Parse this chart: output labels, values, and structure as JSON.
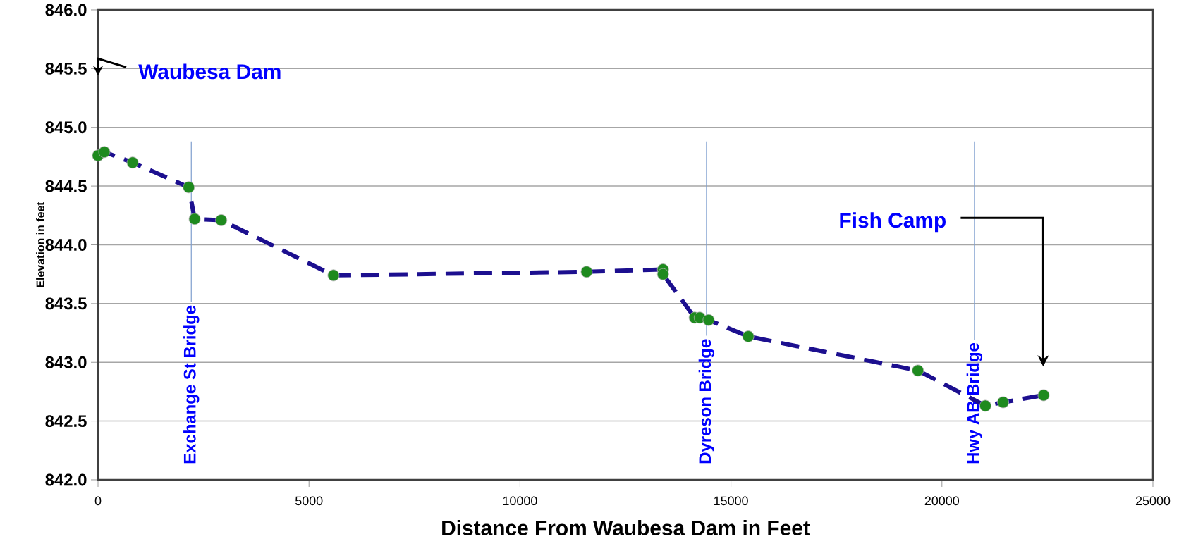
{
  "chart_data": {
    "type": "line",
    "xlabel": "Distance From Waubesa Dam in Feet",
    "ylabel": "Elevation in feet",
    "x": [
      0,
      150,
      820,
      2150,
      2290,
      2920,
      5580,
      11580,
      13390,
      13390,
      14140,
      14260,
      14470,
      15410,
      19430,
      21030,
      21450,
      22410
    ],
    "series": [
      {
        "color": "#1c0f8f",
        "colors": [
          "#1e8a1e",
          "#1e8a1e",
          "#1e8a1e",
          "#1e8a1e",
          "#1e8a1e",
          "#1e8a1e",
          "#1e8a1e",
          "#1e8a1e",
          "#1e8a1e",
          "#1e8a1e",
          "#1e8a1e",
          "#1e8a1e",
          "#1e8a1e",
          "#1e8a1e",
          "#1e8a1e",
          "#1e8a1e",
          "#1e8a1e",
          "#1e8a1e"
        ],
        "values": [
          844.76,
          844.79,
          844.7,
          844.49,
          844.22,
          844.21,
          843.74,
          843.77,
          843.79,
          843.75,
          843.38,
          843.38,
          843.36,
          843.22,
          842.93,
          842.63,
          842.66,
          842.72
        ]
      }
    ],
    "marker": "circle",
    "line_style": "dashed",
    "grid": "y",
    "xlim": [
      0,
      25000
    ],
    "ylim": [
      842,
      846
    ],
    "xticks": [
      0,
      5000,
      10000,
      15000,
      20000,
      25000
    ],
    "yticks": [
      {
        "value": 842,
        "label": "842.0"
      },
      842.5,
      {
        "value": 843,
        "label": "843.0"
      },
      843.5,
      {
        "value": 844,
        "label": "844.0"
      },
      844.5,
      {
        "value": 845,
        "label": "845.0"
      },
      845.5,
      {
        "value": 846,
        "label": "846.0"
      }
    ],
    "ref_lines": [
      {
        "axis": "x",
        "value": 2210,
        "label": "Exchange St Bridge",
        "color": "#7f9fcf"
      },
      {
        "axis": "x",
        "value": 14420,
        "label": "Dyreson Bridge",
        "color": "#7f9fcf"
      },
      {
        "axis": "x",
        "value": 20770,
        "label": "Hwy AB Bridge",
        "color": "#7f9fcf"
      }
    ],
    "annotations": [
      "Waubesa Dam",
      "Fish Camp"
    ]
  }
}
